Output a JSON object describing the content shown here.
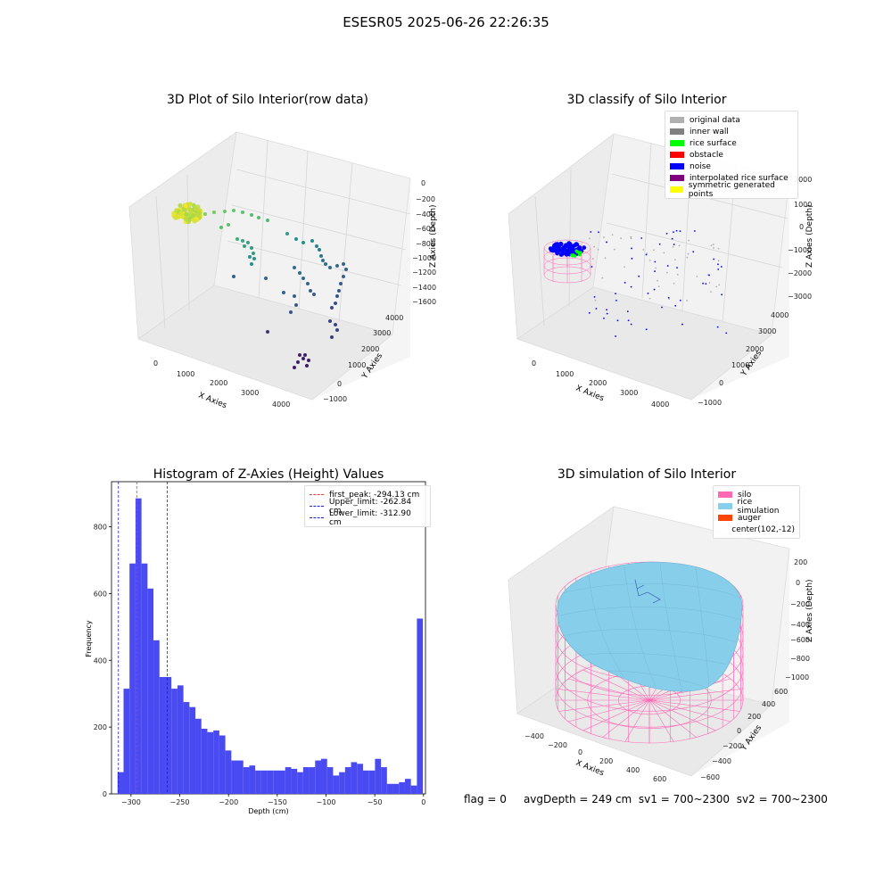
{
  "suptitle": "ESESR05 2025-06-26 22:26:35",
  "footer": {
    "flag": "flag = 0",
    "avg_depth": "avgDepth = 249 cm",
    "sv1": "sv1 = 700~2300",
    "sv2": "sv2 = 700~2300"
  },
  "chart_data": [
    {
      "type": "scatter",
      "title": "3D Plot of Silo Interior(row data)",
      "xlabel": "X Axies",
      "ylabel": "Y Axies",
      "zlabel": "Z Axies (Depth)",
      "x_ticks": [
        "0",
        "1000",
        "2000",
        "3000",
        "4000"
      ],
      "y_ticks": [
        "−1000",
        "0",
        "1000",
        "2000",
        "3000",
        "4000"
      ],
      "z_ticks": [
        "0",
        "−200",
        "−400",
        "−600",
        "−800",
        "−1000",
        "−1200",
        "−1400",
        "−1600"
      ],
      "colormap": "viridis"
    },
    {
      "type": "scatter",
      "title": "3D classify of Silo Interior",
      "xlabel": "X Axies",
      "ylabel": "Y Axies",
      "zlabel": "Z Axies (Depth)",
      "x_ticks": [
        "0",
        "1000",
        "2000",
        "3000",
        "4000"
      ],
      "y_ticks": [
        "−1000",
        "0",
        "1000",
        "2000",
        "3000",
        "4000"
      ],
      "z_ticks": [
        "2000",
        "1000",
        "0",
        "−1000",
        "−2000",
        "−3000"
      ],
      "legend": [
        {
          "label": "original data",
          "color": "#b0b0b0"
        },
        {
          "label": "inner wall",
          "color": "#808080"
        },
        {
          "label": "rice surface",
          "color": "#00ff00"
        },
        {
          "label": "obstacle",
          "color": "#ff0000"
        },
        {
          "label": "noise",
          "color": "#0000ff"
        },
        {
          "label": "interpolated rice surface",
          "color": "#800080"
        },
        {
          "label": "symmetric generated points",
          "color": "#ffff00"
        }
      ]
    },
    {
      "type": "bar",
      "title": "Histogram of Z-Axies (Height) Values",
      "xlabel": "Depth (cm)",
      "ylabel": "Frequency",
      "xlim": [
        -320,
        2
      ],
      "ylim": [
        0,
        935
      ],
      "x_ticks": [
        -300,
        -250,
        -200,
        -150,
        -100,
        -50,
        0
      ],
      "y_ticks": [
        0,
        200,
        400,
        600,
        800
      ],
      "bar_color": "#4a4af2",
      "bin_width": 6.14,
      "bin_start": -313.8,
      "values": [
        65,
        315,
        690,
        885,
        690,
        615,
        460,
        350,
        350,
        315,
        325,
        275,
        260,
        225,
        195,
        185,
        190,
        175,
        130,
        100,
        100,
        80,
        85,
        70,
        70,
        70,
        70,
        70,
        80,
        75,
        65,
        80,
        80,
        100,
        105,
        80,
        55,
        65,
        80,
        95,
        90,
        70,
        70,
        105,
        80,
        30,
        30,
        35,
        45,
        25,
        525
      ],
      "vlines": [
        {
          "label": "first_peak: -294.13 cm",
          "x": -294.13,
          "color": "#e04040"
        },
        {
          "label": "Upper_limit: -262.84 cm",
          "x": -262.84,
          "color": "#2020d0"
        },
        {
          "label": "Lower_limit: -312.90 cm",
          "x": -312.9,
          "color": "#2020d0"
        }
      ]
    },
    {
      "type": "scatter",
      "title": "3D simulation of Silo Interior",
      "xlabel": "X Axies",
      "ylabel": "Y Axies",
      "zlabel": "Z Axies (Depth)",
      "x_ticks": [
        "−400",
        "−200",
        "0",
        "200",
        "400",
        "600"
      ],
      "y_ticks": [
        "−600",
        "−400",
        "−200",
        "0",
        "200",
        "400",
        "600"
      ],
      "z_ticks": [
        "200",
        "0",
        "−200",
        "−400",
        "−600",
        "−800",
        "−1000"
      ],
      "legend": [
        {
          "label": "silo",
          "color": "#ff69b4"
        },
        {
          "label": "rice simulation",
          "color": "#87ceeb"
        },
        {
          "label": "auger",
          "color": "#ff4500"
        },
        {
          "label": "center(102,-12)",
          "color": ""
        }
      ]
    }
  ]
}
